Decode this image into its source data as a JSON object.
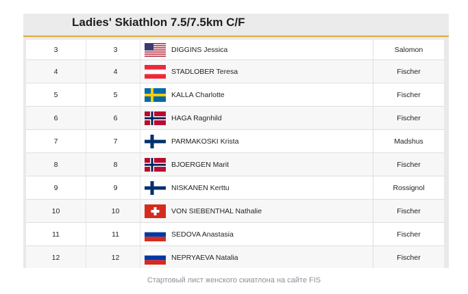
{
  "title": "Ladies' Skiathlon 7.5/7.5km C/F",
  "rows": [
    {
      "rank": "3",
      "bib": "3",
      "flag": "usa-flag-icon",
      "name": "DIGGINS Jessica",
      "brand": "Salomon"
    },
    {
      "rank": "4",
      "bib": "4",
      "flag": "austria-flag-icon",
      "name": "STADLOBER Teresa",
      "brand": "Fischer"
    },
    {
      "rank": "5",
      "bib": "5",
      "flag": "sweden-flag-icon",
      "name": "KALLA Charlotte",
      "brand": "Fischer"
    },
    {
      "rank": "6",
      "bib": "6",
      "flag": "norway-flag-icon",
      "name": "HAGA Ragnhild",
      "brand": "Fischer"
    },
    {
      "rank": "7",
      "bib": "7",
      "flag": "finland-flag-icon",
      "name": "PARMAKOSKI Krista",
      "brand": "Madshus"
    },
    {
      "rank": "8",
      "bib": "8",
      "flag": "norway-flag-icon",
      "name": "BJOERGEN Marit",
      "brand": "Fischer"
    },
    {
      "rank": "9",
      "bib": "9",
      "flag": "finland-flag-icon",
      "name": "NISKANEN Kerttu",
      "brand": "Rossignol"
    },
    {
      "rank": "10",
      "bib": "10",
      "flag": "switzerland-flag-icon",
      "name": "VON SIEBENTHAL Nathalie",
      "brand": "Fischer"
    },
    {
      "rank": "11",
      "bib": "11",
      "flag": "russia-flag-icon",
      "name": "SEDOVA Anastasia",
      "brand": "Fischer"
    },
    {
      "rank": "12",
      "bib": "12",
      "flag": "russia-flag-icon",
      "name": "NEPRYAEVA Natalia",
      "brand": "Fischer"
    }
  ],
  "caption": "Стартовый лист женского скиатлона на сайте FIS",
  "colors": {
    "accent": "#d9a93a"
  }
}
